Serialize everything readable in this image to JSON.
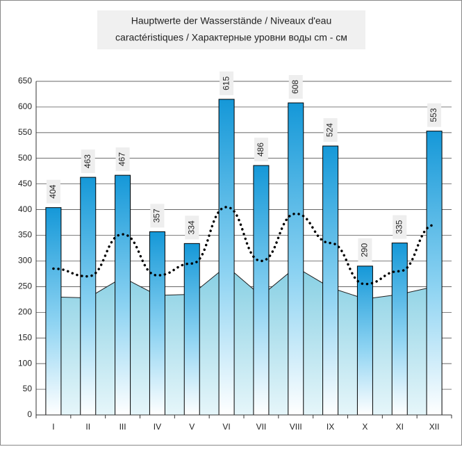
{
  "chart_data": {
    "type": "bar",
    "title": [
      "Hauptwerte der Wasserstände / Niveaux d'eau",
      "caractéristiques / Характерные уровни воды cm - см"
    ],
    "categories": [
      "I",
      "II",
      "III",
      "IV",
      "V",
      "VI",
      "VII",
      "VIII",
      "IX",
      "X",
      "XI",
      "XII"
    ],
    "series": [
      {
        "kind": "bar",
        "color": "#1a9ad6",
        "values": [
          404,
          463,
          467,
          357,
          334,
          615,
          486,
          608,
          524,
          290,
          335,
          553
        ]
      },
      {
        "kind": "area",
        "color": "#9fd6e6",
        "values": [
          230,
          228,
          268,
          233,
          235,
          290,
          232,
          288,
          248,
          226,
          235,
          250
        ]
      },
      {
        "kind": "line",
        "color": "#000000",
        "values": [
          285,
          270,
          352,
          272,
          295,
          405,
          300,
          392,
          335,
          255,
          280,
          370
        ]
      }
    ],
    "ylim": [
      0,
      650
    ],
    "yticks": [
      0,
      50,
      100,
      150,
      200,
      250,
      300,
      350,
      400,
      450,
      500,
      550,
      600,
      650
    ],
    "grid": true
  }
}
